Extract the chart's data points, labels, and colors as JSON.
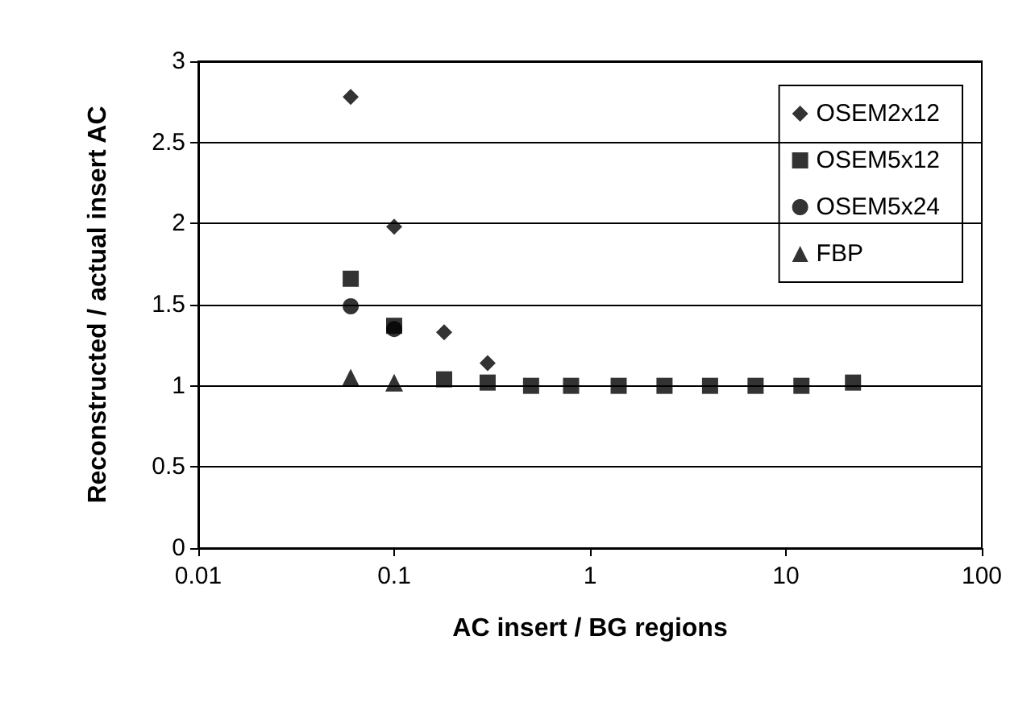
{
  "chart_data": {
    "type": "scatter",
    "xlabel": "AC insert / BG regions",
    "ylabel": "Reconstructed / actual insert AC",
    "log": "x",
    "xlim": [
      0.01,
      100
    ],
    "xticks": [
      0.01,
      0.1,
      1,
      10,
      100
    ],
    "ylim": [
      0,
      3
    ],
    "yticks": [
      0,
      0.5,
      1,
      1.5,
      2,
      2.5,
      3
    ],
    "grid": "y",
    "legend": "top right",
    "x": [
      0.06,
      0.1,
      0.18,
      0.3,
      0.5,
      0.8,
      1.4,
      2.4,
      4.1,
      7,
      12,
      22
    ],
    "series": [
      {
        "name": "OSEM2x12",
        "color": "#000000",
        "marker": "diamond",
        "values": [
          2.78,
          1.98,
          1.33,
          1.14,
          null,
          null,
          null,
          null,
          null,
          null,
          null,
          null
        ]
      },
      {
        "name": "OSEM5x12",
        "color": "#000000",
        "marker": "square",
        "values": [
          1.66,
          1.37,
          1.04,
          1.02,
          1.0,
          1.0,
          1.0,
          1.0,
          1.0,
          1.0,
          1.0,
          1.02
        ]
      },
      {
        "name": "OSEM5x24",
        "color": "#000000",
        "marker": "circle",
        "values": [
          1.49,
          1.35,
          null,
          null,
          null,
          null,
          null,
          null,
          null,
          null,
          null,
          null
        ]
      },
      {
        "name": "FBP",
        "color": "#000000",
        "marker": "triangle",
        "values": [
          1.05,
          1.02,
          null,
          null,
          null,
          null,
          null,
          null,
          null,
          null,
          null,
          null
        ]
      }
    ]
  }
}
